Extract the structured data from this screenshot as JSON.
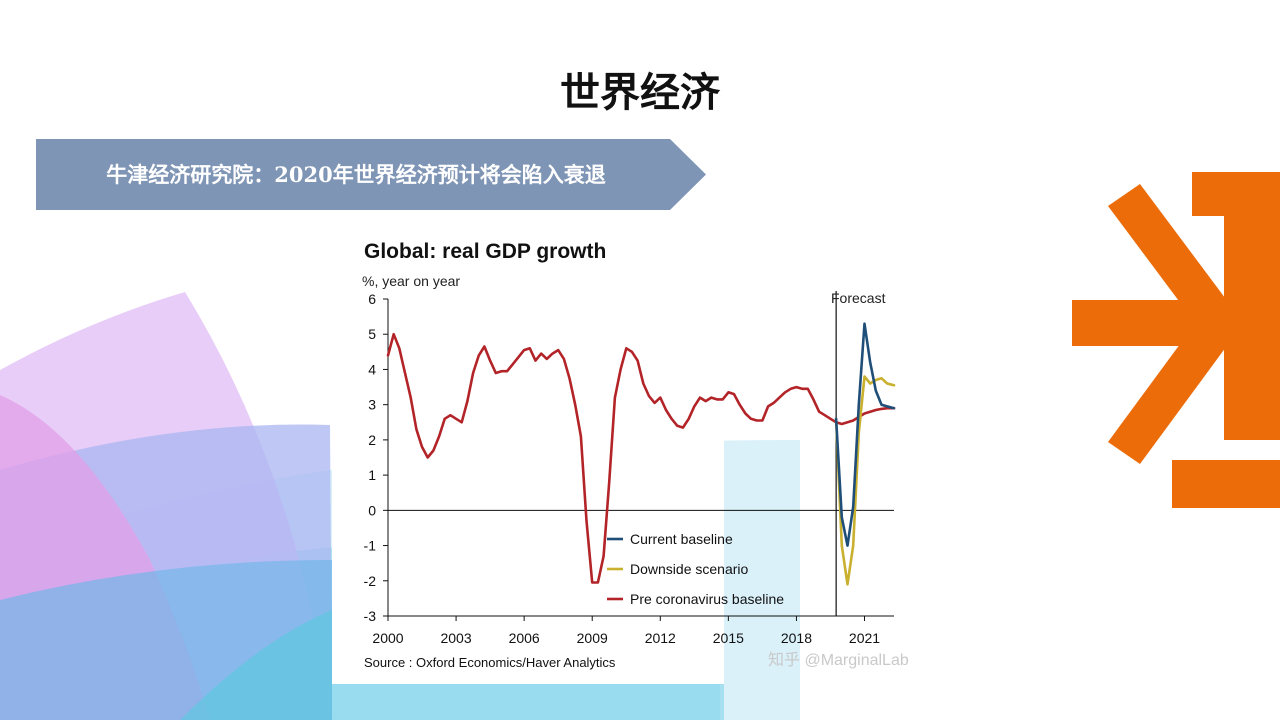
{
  "slide": {
    "title": "世界经济",
    "banner": "牛津经济研究院：2020年世界经济预计将会陷入衰退",
    "watermark": "知乎 @MarginalLab",
    "colors": {
      "banner": "#7f95b5",
      "orange_logo": "#ec6c0a"
    }
  },
  "chart_data": {
    "type": "line",
    "title": "Global: real GDP growth",
    "ylabel": "%, year on year",
    "xlabel": "",
    "source": "Source : Oxford Economics/Haver Analytics",
    "annotation": "Forecast",
    "forecast_start": 2019.75,
    "xlim": [
      2000,
      2022.3
    ],
    "ylim": [
      -3,
      6
    ],
    "x_ticks": [
      2000,
      2003,
      2006,
      2009,
      2012,
      2015,
      2018,
      2021
    ],
    "y_ticks": [
      -3,
      -2,
      -1,
      0,
      1,
      2,
      3,
      4,
      5,
      6
    ],
    "grid": false,
    "legend": "bottom-center",
    "series": [
      {
        "name": "Current baseline",
        "color": "#1f4e79",
        "x": [
          2019.75,
          2020.0,
          2020.25,
          2020.5,
          2020.75,
          2021.0,
          2021.25,
          2021.5,
          2021.75,
          2022.0,
          2022.3
        ],
        "y": [
          2.6,
          -0.2,
          -1.0,
          0.1,
          3.0,
          5.3,
          4.2,
          3.4,
          3.0,
          2.95,
          2.9
        ]
      },
      {
        "name": "Downside scenario",
        "color": "#c9b02f",
        "x": [
          2019.75,
          2020.0,
          2020.25,
          2020.5,
          2020.75,
          2021.0,
          2021.25,
          2021.5,
          2021.75,
          2022.0,
          2022.3
        ],
        "y": [
          2.6,
          -1.0,
          -2.1,
          -1.0,
          2.2,
          3.8,
          3.6,
          3.7,
          3.75,
          3.6,
          3.55
        ]
      },
      {
        "name": "Pre coronavirus baseline",
        "color": "#b32428",
        "x": [
          2000.0,
          2000.25,
          2000.5,
          2000.75,
          2001.0,
          2001.25,
          2001.5,
          2001.75,
          2002.0,
          2002.25,
          2002.5,
          2002.75,
          2003.0,
          2003.25,
          2003.5,
          2003.75,
          2004.0,
          2004.25,
          2004.5,
          2004.75,
          2005.0,
          2005.25,
          2005.5,
          2005.75,
          2006.0,
          2006.25,
          2006.5,
          2006.75,
          2007.0,
          2007.25,
          2007.5,
          2007.75,
          2008.0,
          2008.25,
          2008.5,
          2008.75,
          2009.0,
          2009.25,
          2009.5,
          2009.75,
          2010.0,
          2010.25,
          2010.5,
          2010.75,
          2011.0,
          2011.25,
          2011.5,
          2011.75,
          2012.0,
          2012.25,
          2012.5,
          2012.75,
          2013.0,
          2013.25,
          2013.5,
          2013.75,
          2014.0,
          2014.25,
          2014.5,
          2014.75,
          2015.0,
          2015.25,
          2015.5,
          2015.75,
          2016.0,
          2016.25,
          2016.5,
          2016.75,
          2017.0,
          2017.25,
          2017.5,
          2017.75,
          2018.0,
          2018.25,
          2018.5,
          2018.75,
          2019.0,
          2019.25,
          2019.5,
          2019.75,
          2020.0,
          2020.25,
          2020.5,
          2020.75,
          2021.0,
          2021.25,
          2021.5,
          2021.75,
          2022.0,
          2022.3
        ],
        "y": [
          4.4,
          5.0,
          4.6,
          3.9,
          3.2,
          2.3,
          1.8,
          1.5,
          1.7,
          2.1,
          2.6,
          2.7,
          2.6,
          2.5,
          3.1,
          3.9,
          4.4,
          4.65,
          4.25,
          3.9,
          3.95,
          3.95,
          4.15,
          4.35,
          4.55,
          4.6,
          4.25,
          4.45,
          4.3,
          4.45,
          4.55,
          4.3,
          3.75,
          3.0,
          2.1,
          -0.3,
          -2.05,
          -2.05,
          -1.3,
          0.8,
          3.2,
          4.0,
          4.6,
          4.5,
          4.25,
          3.6,
          3.25,
          3.05,
          3.2,
          2.85,
          2.6,
          2.4,
          2.35,
          2.6,
          2.95,
          3.2,
          3.1,
          3.2,
          3.15,
          3.15,
          3.35,
          3.3,
          3.0,
          2.75,
          2.6,
          2.55,
          2.55,
          2.95,
          3.05,
          3.2,
          3.35,
          3.45,
          3.5,
          3.45,
          3.45,
          3.15,
          2.8,
          2.7,
          2.6,
          2.5,
          2.45,
          2.5,
          2.55,
          2.65,
          2.75,
          2.8,
          2.85,
          2.88,
          2.9,
          2.9
        ]
      }
    ]
  }
}
